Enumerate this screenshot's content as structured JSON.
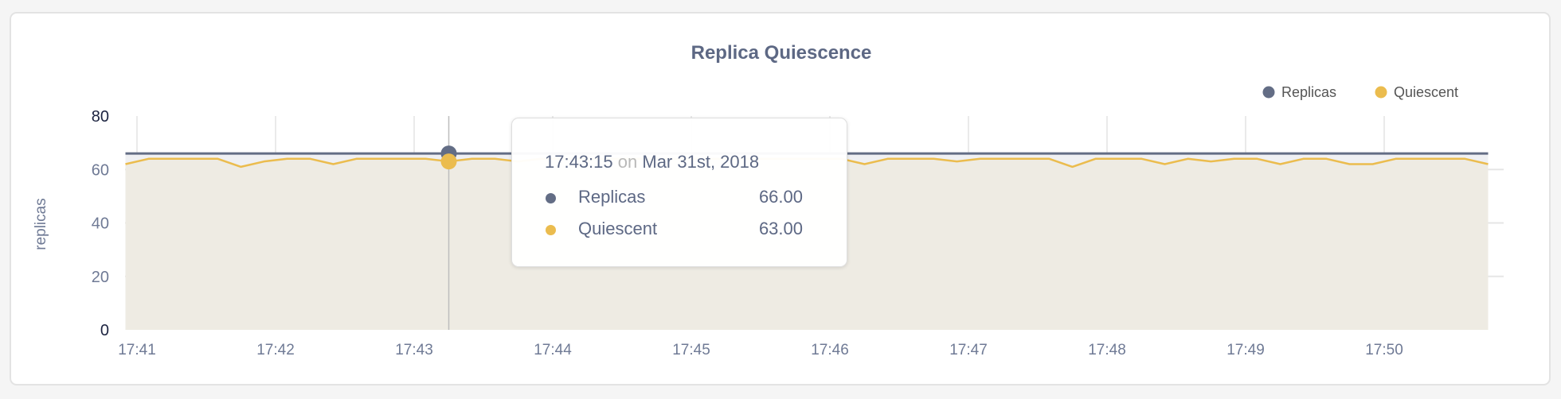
{
  "chart_data": {
    "type": "area",
    "title": "Replica Quiescence",
    "ylabel": "replicas",
    "xlabel": "",
    "ylim": [
      0,
      80
    ],
    "yticks": [
      "0",
      "20",
      "40",
      "60",
      "80"
    ],
    "xticks": [
      "17:41",
      "17:42",
      "17:43",
      "17:44",
      "17:45",
      "17:46",
      "17:47",
      "17:48",
      "17:49",
      "17:50"
    ],
    "grid": true,
    "legend": "top-right",
    "x": [
      "17:40:55",
      "17:41:05",
      "17:41:15",
      "17:41:25",
      "17:41:35",
      "17:41:45",
      "17:41:55",
      "17:42:05",
      "17:42:15",
      "17:42:25",
      "17:42:35",
      "17:42:45",
      "17:42:55",
      "17:43:05",
      "17:43:15",
      "17:43:25",
      "17:43:35",
      "17:43:45",
      "17:43:55",
      "17:44:05",
      "17:44:15",
      "17:44:25",
      "17:44:35",
      "17:44:45",
      "17:44:55",
      "17:45:05",
      "17:45:15",
      "17:45:25",
      "17:45:35",
      "17:45:45",
      "17:45:55",
      "17:46:05",
      "17:46:15",
      "17:46:25",
      "17:46:35",
      "17:46:45",
      "17:46:55",
      "17:47:05",
      "17:47:15",
      "17:47:25",
      "17:47:35",
      "17:47:45",
      "17:47:55",
      "17:48:05",
      "17:48:15",
      "17:48:25",
      "17:48:35",
      "17:48:45",
      "17:48:55",
      "17:49:05",
      "17:49:15",
      "17:49:25",
      "17:49:35",
      "17:49:45",
      "17:49:55",
      "17:50:05",
      "17:50:15",
      "17:50:25",
      "17:50:35",
      "17:50:45"
    ],
    "series": [
      {
        "name": "Replicas",
        "color": "#636d85",
        "values": [
          66,
          66,
          66,
          66,
          66,
          66,
          66,
          66,
          66,
          66,
          66,
          66,
          66,
          66,
          66,
          66,
          66,
          66,
          66,
          66,
          66,
          66,
          66,
          66,
          66,
          66,
          66,
          66,
          66,
          66,
          66,
          66,
          66,
          66,
          66,
          66,
          66,
          66,
          66,
          66,
          66,
          66,
          66,
          66,
          66,
          66,
          66,
          66,
          66,
          66,
          66,
          66,
          66,
          66,
          66,
          66,
          66,
          66,
          66,
          66
        ]
      },
      {
        "name": "Quiescent",
        "color": "#ebbc4e",
        "values": [
          62,
          64,
          64,
          64,
          64,
          61,
          63,
          64,
          64,
          62,
          64,
          64,
          64,
          64,
          63,
          64,
          64,
          63,
          64,
          64,
          64,
          64,
          64,
          64,
          64,
          64,
          64,
          64,
          64,
          64,
          64,
          64,
          62,
          64,
          64,
          64,
          63,
          64,
          64,
          64,
          64,
          61,
          64,
          64,
          64,
          62,
          64,
          63,
          64,
          64,
          62,
          64,
          64,
          62,
          62,
          64,
          64,
          64,
          64,
          62
        ]
      }
    ],
    "tooltip": {
      "time": "17:43:15",
      "on": "on",
      "date": "Mar 31st, 2018",
      "rows": [
        {
          "label": "Replicas",
          "value": "66.00"
        },
        {
          "label": "Quiescent",
          "value": "63.00"
        }
      ]
    }
  }
}
